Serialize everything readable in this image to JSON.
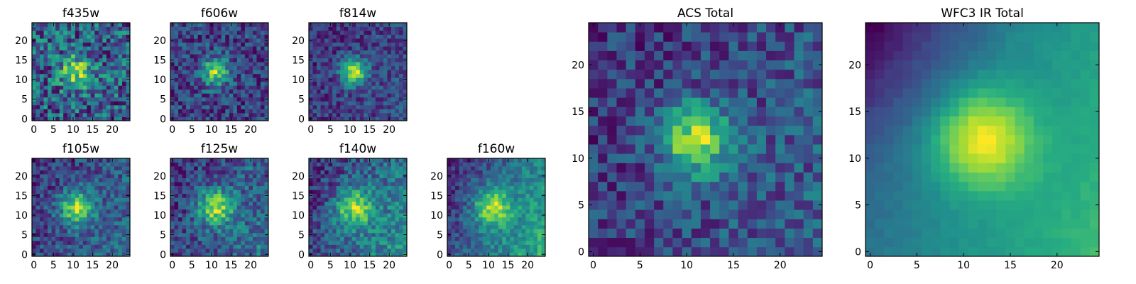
{
  "chart_data": [
    {
      "type": "heatmap",
      "title": "f435w",
      "xticks": [
        "0",
        "5",
        "10",
        "15",
        "20"
      ],
      "yticks": [
        "0",
        "5",
        "10",
        "15",
        "20"
      ],
      "xlim": [
        -0.5,
        24.5
      ],
      "ylim": [
        -0.5,
        24.5
      ],
      "colormap": "viridis",
      "grid": false,
      "center": [
        11,
        12
      ],
      "peak": 0.35,
      "width": 3.0,
      "noise": 0.45,
      "gradient": 0.0,
      "seed": 11
    },
    {
      "type": "heatmap",
      "title": "f606w",
      "xticks": [
        "0",
        "5",
        "10",
        "15",
        "20"
      ],
      "yticks": [
        "0",
        "5",
        "10",
        "15",
        "20"
      ],
      "xlim": [
        -0.5,
        24.5
      ],
      "ylim": [
        -0.5,
        24.5
      ],
      "colormap": "viridis",
      "grid": false,
      "center": [
        11,
        12
      ],
      "peak": 0.55,
      "width": 2.5,
      "noise": 0.38,
      "gradient": 0.0,
      "seed": 23
    },
    {
      "type": "heatmap",
      "title": "f814w",
      "xticks": [
        "0",
        "5",
        "10",
        "15",
        "20"
      ],
      "yticks": [
        "0",
        "5",
        "10",
        "15",
        "20"
      ],
      "xlim": [
        -0.5,
        24.5
      ],
      "ylim": [
        -0.5,
        24.5
      ],
      "colormap": "viridis",
      "grid": false,
      "center": [
        11,
        12
      ],
      "peak": 0.65,
      "width": 2.3,
      "noise": 0.3,
      "gradient": 0.1,
      "seed": 37
    },
    {
      "type": "heatmap",
      "title": "f105w",
      "xticks": [
        "0",
        "5",
        "10",
        "15",
        "20"
      ],
      "yticks": [
        "0",
        "5",
        "10",
        "15",
        "20"
      ],
      "xlim": [
        -0.5,
        24.5
      ],
      "ylim": [
        -0.5,
        24.5
      ],
      "colormap": "viridis",
      "grid": false,
      "center": [
        11,
        12
      ],
      "peak": 0.5,
      "width": 3.0,
      "noise": 0.3,
      "gradient": 0.15,
      "seed": 41
    },
    {
      "type": "heatmap",
      "title": "f125w",
      "xticks": [
        "0",
        "5",
        "10",
        "15",
        "20"
      ],
      "yticks": [
        "0",
        "5",
        "10",
        "15",
        "20"
      ],
      "xlim": [
        -0.5,
        24.5
      ],
      "ylim": [
        -0.5,
        24.5
      ],
      "colormap": "viridis",
      "grid": false,
      "center": [
        11,
        12
      ],
      "peak": 0.45,
      "width": 3.2,
      "noise": 0.3,
      "gradient": 0.2,
      "seed": 53
    },
    {
      "type": "heatmap",
      "title": "f140w",
      "xticks": [
        "0",
        "5",
        "10",
        "15",
        "20"
      ],
      "yticks": [
        "0",
        "5",
        "10",
        "15",
        "20"
      ],
      "xlim": [
        -0.5,
        24.5
      ],
      "ylim": [
        -0.5,
        24.5
      ],
      "colormap": "viridis",
      "grid": false,
      "center": [
        11,
        12
      ],
      "peak": 0.4,
      "width": 3.4,
      "noise": 0.28,
      "gradient": 0.3,
      "seed": 67
    },
    {
      "type": "heatmap",
      "title": "f160w",
      "xticks": [
        "0",
        "5",
        "10",
        "15",
        "20"
      ],
      "yticks": [
        "0",
        "5",
        "10",
        "15",
        "20"
      ],
      "xlim": [
        -0.5,
        24.5
      ],
      "ylim": [
        -0.5,
        24.5
      ],
      "colormap": "viridis",
      "grid": false,
      "center": [
        11,
        12
      ],
      "peak": 0.4,
      "width": 3.4,
      "noise": 0.22,
      "gradient": 0.4,
      "seed": 79
    },
    {
      "type": "heatmap",
      "title": "ACS Total",
      "xticks": [
        "0",
        "5",
        "10",
        "15",
        "20"
      ],
      "yticks": [
        "0",
        "5",
        "10",
        "15",
        "20"
      ],
      "xlim": [
        -0.5,
        24.5
      ],
      "ylim": [
        -0.5,
        24.5
      ],
      "colormap": "viridis",
      "grid": false,
      "center": [
        11,
        12
      ],
      "peak": 0.55,
      "width": 2.6,
      "noise": 0.3,
      "gradient": 0.12,
      "seed": 97
    },
    {
      "type": "heatmap",
      "title": "WFC3 IR Total",
      "xticks": [
        "0",
        "5",
        "10",
        "15",
        "20"
      ],
      "yticks": [
        "0",
        "5",
        "10",
        "15",
        "20"
      ],
      "xlim": [
        -0.5,
        24.5
      ],
      "ylim": [
        -0.5,
        24.5
      ],
      "colormap": "viridis",
      "grid": false,
      "center": [
        12,
        12
      ],
      "peak": 0.55,
      "width": 3.6,
      "noise": 0.05,
      "gradient": 0.45,
      "seed": 101
    }
  ]
}
